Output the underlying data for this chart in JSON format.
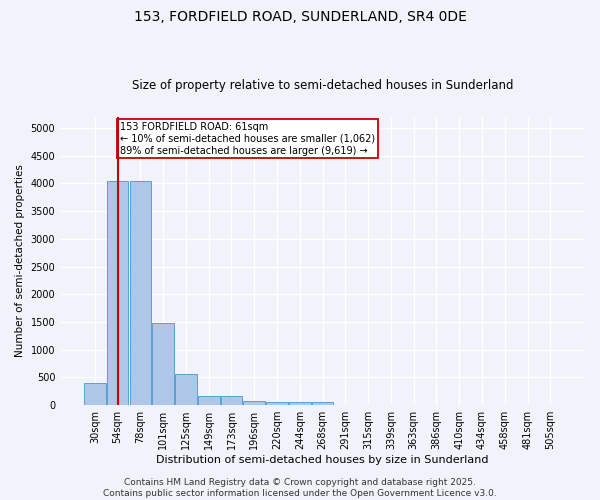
{
  "title": "153, FORDFIELD ROAD, SUNDERLAND, SR4 0DE",
  "subtitle": "Size of property relative to semi-detached houses in Sunderland",
  "xlabel": "Distribution of semi-detached houses by size in Sunderland",
  "ylabel": "Number of semi-detached properties",
  "categories": [
    "30sqm",
    "54sqm",
    "78sqm",
    "101sqm",
    "125sqm",
    "149sqm",
    "173sqm",
    "196sqm",
    "220sqm",
    "244sqm",
    "268sqm",
    "291sqm",
    "315sqm",
    "339sqm",
    "363sqm",
    "386sqm",
    "410sqm",
    "434sqm",
    "458sqm",
    "481sqm",
    "505sqm"
  ],
  "values": [
    400,
    4050,
    4050,
    1480,
    560,
    175,
    175,
    75,
    65,
    65,
    55,
    0,
    0,
    0,
    0,
    0,
    0,
    0,
    0,
    0,
    0
  ],
  "bar_color": "#aec6e8",
  "bar_edgecolor": "#5a9fd4",
  "bar_linewidth": 0.7,
  "property_line_x": 1,
  "property_line_color": "#cc0000",
  "ylim": [
    0,
    5200
  ],
  "yticks": [
    0,
    500,
    1000,
    1500,
    2000,
    2500,
    3000,
    3500,
    4000,
    4500,
    5000
  ],
  "annotation_text": "153 FORDFIELD ROAD: 61sqm\n← 10% of semi-detached houses are smaller (1,062)\n89% of semi-detached houses are larger (9,619) →",
  "annotation_box_color": "#ffffff",
  "annotation_box_edgecolor": "#cc0000",
  "footer": "Contains HM Land Registry data © Crown copyright and database right 2025.\nContains public sector information licensed under the Open Government Licence v3.0.",
  "background_color": "#f0f4fa",
  "plot_background": "#f0f4fa",
  "grid_color": "#ffffff",
  "title_fontsize": 10,
  "subtitle_fontsize": 8.5,
  "footer_fontsize": 6.5,
  "annot_fontsize": 7.0,
  "ylabel_fontsize": 7.5,
  "xlabel_fontsize": 8.0,
  "tick_fontsize": 7.0
}
